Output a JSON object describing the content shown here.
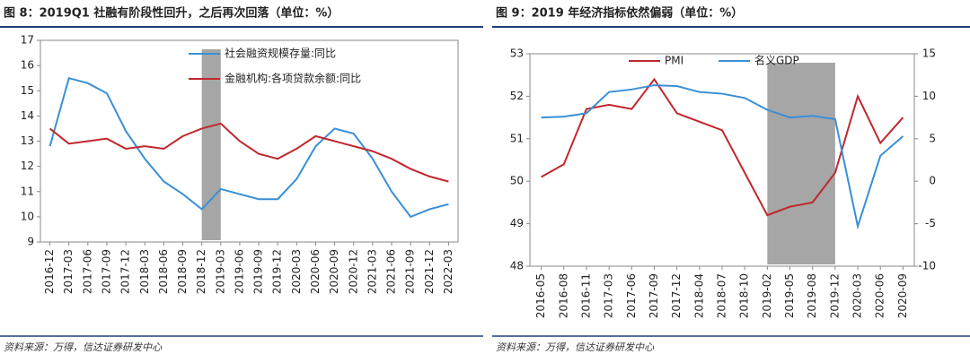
{
  "chart_data": [
    {
      "type": "line",
      "title": "图 8：2019Q1 社融有阶段性回升，之后再次回落（单位：%）",
      "source": "资料来源：万得，信达证券研发中心",
      "categories": [
        "2016-12",
        "2017-03",
        "2017-06",
        "2017-09",
        "2017-12",
        "2018-03",
        "2018-06",
        "2018-09",
        "2018-12",
        "2019-03",
        "2019-06",
        "2019-09",
        "2019-12",
        "2020-03",
        "2020-06",
        "2020-09",
        "2020-12",
        "2021-03",
        "2021-06",
        "2021-09",
        "2021-12",
        "2022-03"
      ],
      "series": [
        {
          "name": "社会融资规模存量:同比",
          "color": "#3a8fd6",
          "values": [
            12.8,
            15.5,
            15.3,
            14.9,
            13.4,
            12.3,
            11.4,
            10.9,
            10.3,
            11.1,
            10.9,
            10.7,
            10.7,
            11.5,
            12.8,
            13.5,
            13.3,
            12.3,
            11.0,
            10.0,
            10.3,
            10.5
          ]
        },
        {
          "name": "金融机构:各项贷款余额:同比",
          "color": "#c0282d",
          "values": [
            13.5,
            12.9,
            13.0,
            13.1,
            12.7,
            12.8,
            12.7,
            13.2,
            13.5,
            13.7,
            13.0,
            12.5,
            12.3,
            12.7,
            13.2,
            13.0,
            12.8,
            12.6,
            12.3,
            11.9,
            11.6,
            11.4
          ]
        }
      ],
      "shaded_range": [
        "2018-12",
        "2019-03"
      ],
      "ylim": [
        9,
        17
      ],
      "yticks": [
        9,
        10,
        11,
        12,
        13,
        14,
        15,
        16,
        17
      ],
      "legend": "top-right"
    },
    {
      "type": "line",
      "title": "图 9：2019 年经济指标依然偏弱（单位：%）",
      "source": "资料来源：万得，信达证券研发中心",
      "categories": [
        "2016-05",
        "2016-08",
        "2016-11",
        "2017-03",
        "2017-06",
        "2017-09",
        "2017-12",
        "2018-04",
        "2018-07",
        "2018-10",
        "2019-02",
        "2019-05",
        "2019-08",
        "2019-12",
        "2020-03",
        "2020-06",
        "2020-09"
      ],
      "series": [
        {
          "name": "PMI",
          "color": "#c0282d",
          "values": [
            50.1,
            50.4,
            51.7,
            51.8,
            51.7,
            52.4,
            51.6,
            51.4,
            51.2,
            50.2,
            49.2,
            49.4,
            49.5,
            50.2,
            52.0,
            50.9,
            51.5
          ]
        },
        {
          "name": "名义GDP",
          "color": "#3a8fd6",
          "axis": "y2",
          "values": [
            7.5,
            7.6,
            8.0,
            10.5,
            10.8,
            11.3,
            11.2,
            10.5,
            10.3,
            9.8,
            8.4,
            7.5,
            7.7,
            7.3,
            -5.3,
            3.0,
            5.3
          ]
        }
      ],
      "shaded_range": [
        "2019-02",
        "2019-12"
      ],
      "ylim": [
        48,
        53
      ],
      "yticks": [
        48,
        49,
        50,
        51,
        52,
        53
      ],
      "y2lim": [
        -10,
        15
      ],
      "y2ticks": [
        -10,
        -5,
        0,
        5,
        10,
        15
      ],
      "legend": "top-left"
    }
  ]
}
